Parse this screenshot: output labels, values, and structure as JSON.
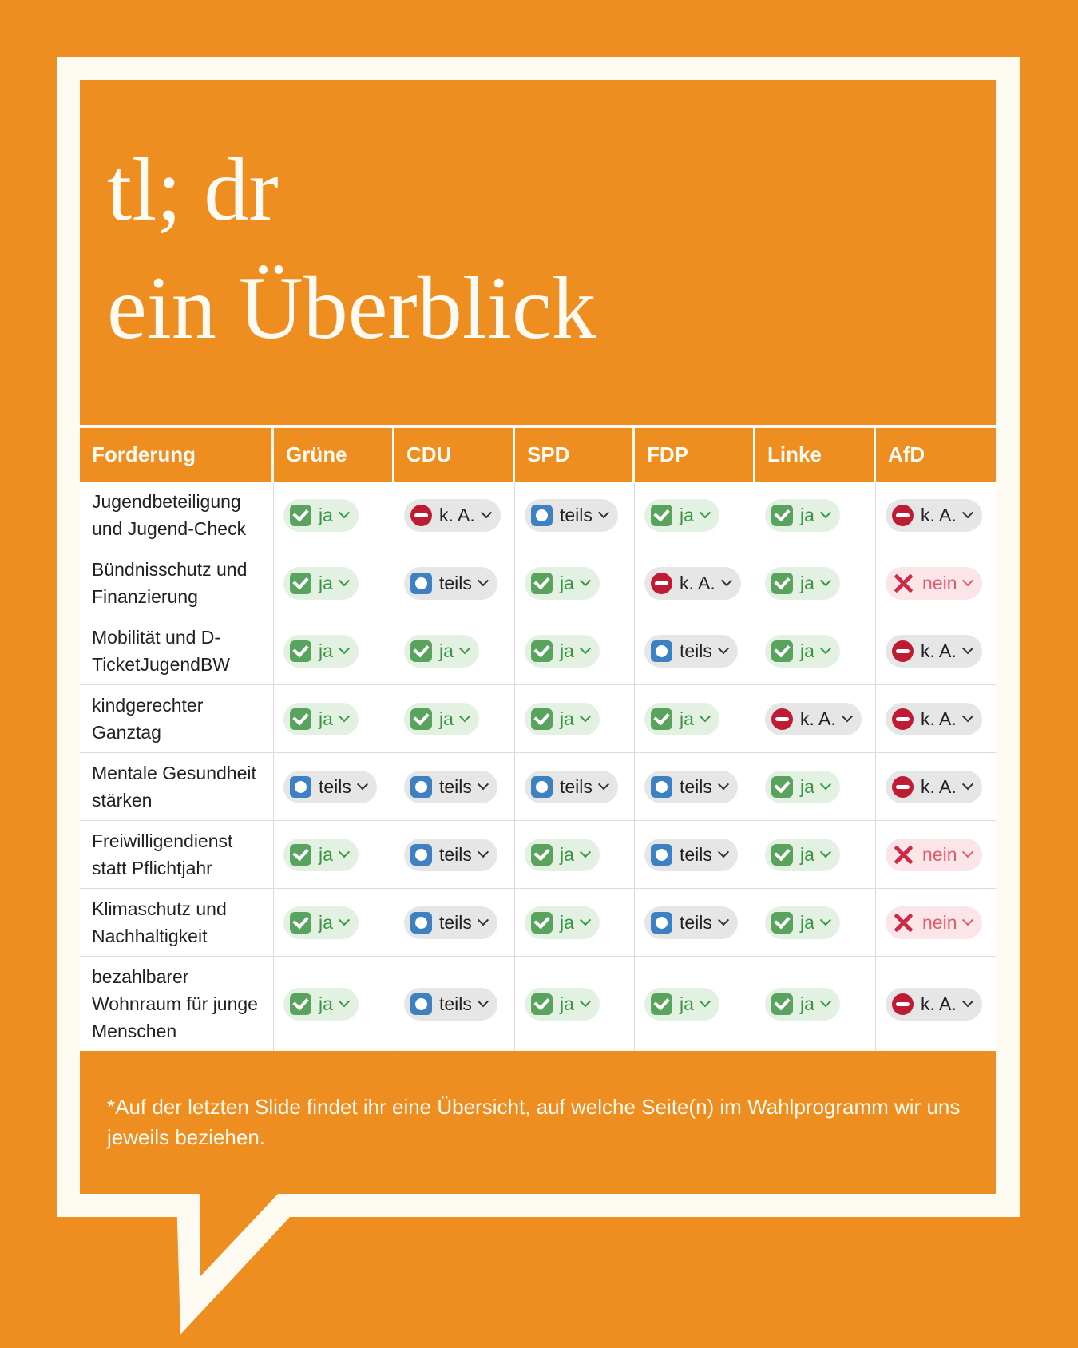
{
  "title": {
    "line1": "tl; dr",
    "line2": "ein Überblick"
  },
  "table": {
    "header": [
      "Forderung",
      "Grüne",
      "CDU",
      "SPD",
      "FDP",
      "Linke",
      "AfD"
    ],
    "badge_labels": {
      "ja": "ja",
      "teils": "teils",
      "ka": "k. A.",
      "nein": "nein"
    },
    "rows": [
      {
        "label": "Jugendbeteiligung und Jugend-Check",
        "values": [
          "ja",
          "ka",
          "teils",
          "ja",
          "ja",
          "ka"
        ]
      },
      {
        "label": "Bündnisschutz und Finanzierung",
        "values": [
          "ja",
          "teils",
          "ja",
          "ka",
          "ja",
          "nein"
        ]
      },
      {
        "label": "Mobilität und D-TicketJugendBW",
        "values": [
          "ja",
          "ja",
          "ja",
          "teils",
          "ja",
          "ka"
        ]
      },
      {
        "label": "kindgerechter Ganztag",
        "values": [
          "ja",
          "ja",
          "ja",
          "ja",
          "ka",
          "ka"
        ]
      },
      {
        "label": "Mentale Gesundheit stärken",
        "values": [
          "teils",
          "teils",
          "teils",
          "teils",
          "ja",
          "ka"
        ]
      },
      {
        "label": "Freiwilligendienst statt Pflichtjahr",
        "values": [
          "ja",
          "teils",
          "ja",
          "teils",
          "ja",
          "nein"
        ]
      },
      {
        "label": "Klimaschutz und Nachhaltigkeit",
        "values": [
          "ja",
          "teils",
          "ja",
          "teils",
          "ja",
          "nein"
        ]
      },
      {
        "label": "bezahlbarer Wohnraum für junge Menschen",
        "values": [
          "ja",
          "teils",
          "ja",
          "ja",
          "ja",
          "ka"
        ]
      }
    ]
  },
  "footnote": "*Auf der letzten Slide findet ihr eine Übersicht, auf welche Seite(n) im Wahlprogramm wir uns jeweils beziehen.",
  "colors": {
    "orange": "#EE8D20",
    "frame-white": "#FDFAF1",
    "text-dark": "#212121",
    "sep": "#DBDBDB",
    "ja-bg": "#E2F1E2",
    "ja-green": "#5AA35E",
    "ja-text": "#37963F",
    "gray-bg": "#E6E6E6",
    "teils-blue": "#3E81C2",
    "ka-red": "#C01B35",
    "nein-bg": "#FBE5E8",
    "nein-red": "#C92C45",
    "nein-text": "#DB5E6B"
  },
  "chart_data": {
    "type": "table",
    "title": "tl; dr ein Überblick",
    "columns": [
      "Forderung",
      "Grüne",
      "CDU",
      "SPD",
      "FDP",
      "Linke",
      "AfD"
    ],
    "rows": [
      [
        "Jugendbeteiligung und Jugend-Check",
        "ja",
        "k. A.",
        "teils",
        "ja",
        "ja",
        "k. A."
      ],
      [
        "Bündnisschutz und Finanzierung",
        "ja",
        "teils",
        "ja",
        "k. A.",
        "ja",
        "nein"
      ],
      [
        "Mobilität und D-TicketJugendBW",
        "ja",
        "ja",
        "ja",
        "teils",
        "ja",
        "k. A."
      ],
      [
        "kindgerechter Ganztag",
        "ja",
        "ja",
        "ja",
        "ja",
        "k. A.",
        "k. A."
      ],
      [
        "Mentale Gesundheit stärken",
        "teils",
        "teils",
        "teils",
        "teils",
        "ja",
        "k. A."
      ],
      [
        "Freiwilligendienst statt Pflichtjahr",
        "ja",
        "teils",
        "ja",
        "teils",
        "ja",
        "nein"
      ],
      [
        "Klimaschutz und Nachhaltigkeit",
        "ja",
        "teils",
        "ja",
        "teils",
        "ja",
        "nein"
      ],
      [
        "bezahlbarer Wohnraum für junge Menschen",
        "ja",
        "teils",
        "ja",
        "ja",
        "ja",
        "k. A."
      ]
    ],
    "footnote": "*Auf der letzten Slide findet ihr eine Übersicht, auf welche Seite(n) im Wahlprogramm wir uns jeweils beziehen."
  }
}
